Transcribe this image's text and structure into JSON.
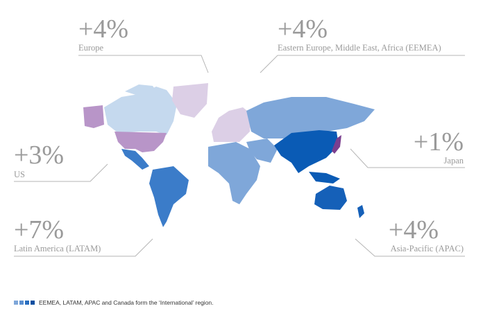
{
  "callouts": [
    {
      "value": "+4%",
      "label": "Europe"
    },
    {
      "value": "+4%",
      "label": "Eastern Europe, Middle East, Africa (EEMEA)"
    },
    {
      "value": "+3%",
      "label": "US"
    },
    {
      "value": "+1%",
      "label": "Japan"
    },
    {
      "value": "+7%",
      "label": "Latin America (LATAM)"
    },
    {
      "value": "+4%",
      "label": "Asia-Pacific (APAC)"
    }
  ],
  "footnote": "EEMEA, LATAM, APAC and Canada form the ‘International’ region."
}
